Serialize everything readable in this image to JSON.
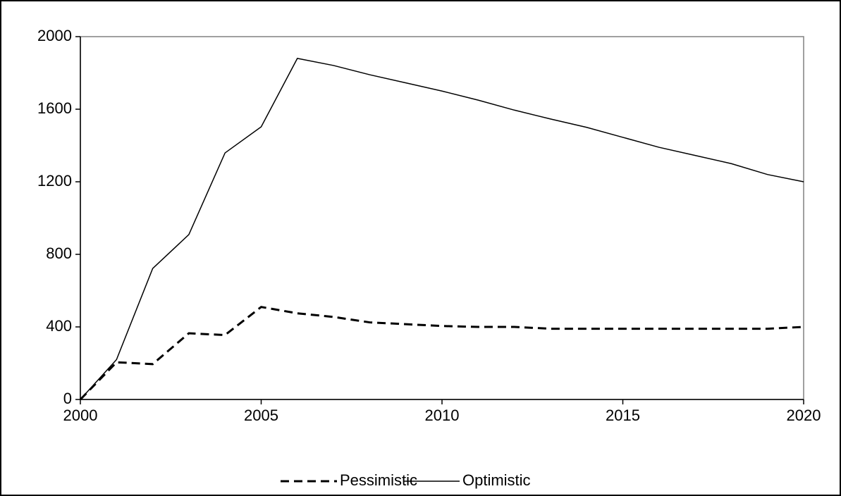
{
  "chart_data": {
    "type": "line",
    "x": [
      2000,
      2001,
      2002,
      2003,
      2004,
      2005,
      2006,
      2007,
      2008,
      2009,
      2010,
      2011,
      2012,
      2013,
      2014,
      2015,
      2016,
      2017,
      2018,
      2019,
      2020
    ],
    "series": [
      {
        "name": "Pessimistic",
        "color": "#000000",
        "style": "dashed",
        "values": [
          0,
          205,
          195,
          365,
          355,
          510,
          475,
          455,
          425,
          415,
          405,
          400,
          400,
          390,
          390,
          390,
          390,
          390,
          390,
          390,
          400
        ]
      },
      {
        "name": "Optimistic",
        "color": "#000000",
        "style": "solid",
        "values": [
          0,
          220,
          722,
          909,
          1359,
          1503,
          1880,
          1841,
          1790,
          1745,
          1700,
          1650,
          1595,
          1546,
          1500,
          1445,
          1390,
          1345,
          1300,
          1240,
          1200
        ]
      }
    ],
    "xlim": [
      2000,
      2020
    ],
    "xticks": [
      2000,
      2005,
      2010,
      2015,
      2020
    ],
    "ylim": [
      0,
      2000
    ],
    "yticks": [
      0,
      400,
      800,
      1200,
      1600,
      2000
    ],
    "grid": false,
    "legend": "bottom"
  }
}
